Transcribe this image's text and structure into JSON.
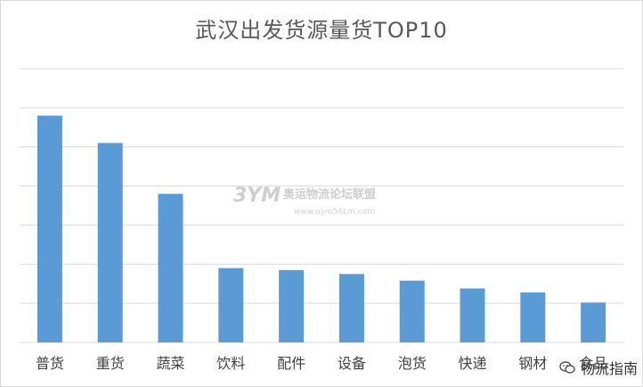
{
  "chart_data": {
    "type": "bar",
    "title": "武汉出发货源量货TOP10",
    "categories": [
      "普货",
      "重货",
      "蔬菜",
      "饮料",
      "配件",
      "设备",
      "泡货",
      "快递",
      "钢材",
      "食品"
    ],
    "values": [
      5.8,
      5.1,
      3.8,
      1.9,
      1.85,
      1.75,
      1.58,
      1.38,
      1.28,
      1.02
    ],
    "ylim": [
      0,
      7
    ],
    "grid": true,
    "xlabel": "",
    "ylabel": "",
    "bar_color": "#5b9bd5",
    "grid_color": "#d9d9d9"
  },
  "watermark": {
    "logo_text": "3YM",
    "name": "奥运物流论坛联盟",
    "url": "www.oym56Lm.com"
  },
  "badge": {
    "label": "物流指南",
    "icon": "wechat-icon"
  }
}
